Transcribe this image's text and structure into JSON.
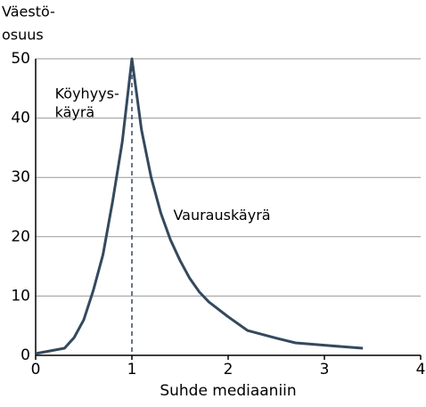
{
  "chart_data": {
    "type": "line",
    "y_label": [
      "Väestö-",
      "osuus"
    ],
    "x_label": "Suhde mediaaniin",
    "x": [
      0,
      0.3,
      0.4,
      0.5,
      0.6,
      0.7,
      0.8,
      0.9,
      1,
      1.1,
      1.2,
      1.3,
      1.4,
      1.5,
      1.6,
      1.7,
      1.8,
      2,
      2.2,
      2.5,
      2.7,
      3,
      3.4
    ],
    "series": [
      {
        "color": "#34495e",
        "values": [
          0.3,
          1.2,
          3,
          6,
          11,
          17,
          26,
          36,
          50,
          38,
          30,
          24,
          19.5,
          16,
          13,
          10.7,
          9,
          6.5,
          4.2,
          2.9,
          2.1,
          1.7,
          1.2
        ]
      }
    ],
    "reference_x": 1,
    "annotations": [
      {
        "lines": [
          "Köyhyys-",
          "käyrä"
        ],
        "x": 0.2,
        "y": 44
      },
      {
        "lines": [
          "Vaurauskäyrä"
        ],
        "x": 1.43,
        "y": 23.5
      }
    ],
    "xlim": [
      0,
      4
    ],
    "xticks": [
      0,
      1,
      2,
      3,
      4
    ],
    "ylim": [
      0,
      50
    ],
    "yticks": [
      0,
      10,
      20,
      30,
      40,
      50
    ],
    "grid": true
  }
}
